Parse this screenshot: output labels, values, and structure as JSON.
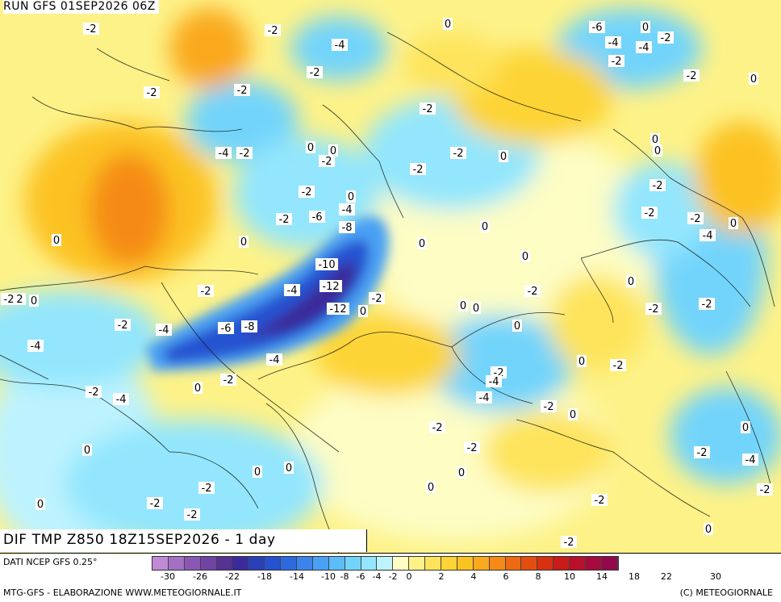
{
  "header": {
    "run_label": "RUN GFS 01SEP2026 06Z"
  },
  "title": {
    "text": "DIF TMP Z850 18Z15SEP2026 - 1 day"
  },
  "footer": {
    "source": "DATI NCEP GFS 0.25°",
    "credit_left": "MTG-GFS - ELABORAZIONE WWW.METEOGIORNALE.IT",
    "credit_right": "(C) METEOGIORNALE"
  },
  "legend": {
    "colors": [
      "#c08ad6",
      "#a370c4",
      "#8a58b4",
      "#6f44a3",
      "#553293",
      "#3b2a9a",
      "#2b3fb8",
      "#2552d0",
      "#2d6ae0",
      "#3a84ec",
      "#4aa0f4",
      "#5cbcf8",
      "#72d4fb",
      "#93e6fd",
      "#bdf3fe",
      "#fdfdc4",
      "#fdf288",
      "#fde45c",
      "#fdd436",
      "#fcc221",
      "#faa91c",
      "#f58b16",
      "#ee6a12",
      "#e44d10",
      "#d8310f",
      "#c81b1a",
      "#b8102a",
      "#a50b3c",
      "#920a4c"
    ],
    "ticks": [
      "-30",
      "-26",
      "-22",
      "-18",
      "-14",
      "-10",
      "-8",
      "-6",
      "-4",
      "-2",
      "0",
      "2",
      "4",
      "6",
      "8",
      "10",
      "14",
      "18",
      "22",
      "30"
    ]
  },
  "map_labels": [
    {
      "text": "-2"
    },
    {
      "text": "-2"
    },
    {
      "text": "-4"
    },
    {
      "text": "-2"
    },
    {
      "text": "0"
    },
    {
      "text": "-2"
    },
    {
      "text": "-6"
    },
    {
      "text": "0"
    },
    {
      "text": "-2"
    },
    {
      "text": "-4"
    },
    {
      "text": "-4"
    },
    {
      "text": "-2"
    },
    {
      "text": "-2"
    },
    {
      "text": "-2"
    },
    {
      "text": "0"
    },
    {
      "text": "-2"
    },
    {
      "text": "-2"
    },
    {
      "text": "-4"
    },
    {
      "text": "-2"
    },
    {
      "text": "0"
    },
    {
      "text": "0"
    },
    {
      "text": "0"
    },
    {
      "text": "-2"
    },
    {
      "text": "-2"
    },
    {
      "text": "-2"
    },
    {
      "text": "0"
    },
    {
      "text": "0"
    },
    {
      "text": "0"
    },
    {
      "text": "-2"
    },
    {
      "text": "-6"
    },
    {
      "text": "-4"
    },
    {
      "text": "-8"
    },
    {
      "text": "0"
    },
    {
      "text": "0"
    },
    {
      "text": "-2"
    },
    {
      "text": "0"
    },
    {
      "text": "-2"
    },
    {
      "text": "-2"
    },
    {
      "text": "-4"
    },
    {
      "text": "0"
    },
    {
      "text": "0"
    },
    {
      "text": "-10"
    },
    {
      "text": "-12"
    },
    {
      "text": "-4"
    },
    {
      "text": "-2"
    },
    {
      "text": "0"
    },
    {
      "text": "-2"
    },
    {
      "text": "-2"
    },
    {
      "text": "0"
    },
    {
      "text": "-12"
    },
    {
      "text": "-2"
    },
    {
      "text": "0"
    },
    {
      "text": "-2"
    },
    {
      "text": "0"
    },
    {
      "text": "0"
    },
    {
      "text": "-2"
    },
    {
      "text": "-6"
    },
    {
      "text": "-8"
    },
    {
      "text": "-4"
    },
    {
      "text": "0"
    },
    {
      "text": "-2"
    },
    {
      "text": "-4"
    },
    {
      "text": "-4"
    },
    {
      "text": "0"
    },
    {
      "text": "-2"
    },
    {
      "text": "-2"
    },
    {
      "text": "-4"
    },
    {
      "text": "-2"
    },
    {
      "text": "-4"
    },
    {
      "text": "-2"
    },
    {
      "text": "-4"
    },
    {
      "text": "0"
    },
    {
      "text": "0"
    },
    {
      "text": "-2"
    },
    {
      "text": "-2"
    },
    {
      "text": "-2"
    },
    {
      "text": "0"
    },
    {
      "text": "-2"
    },
    {
      "text": "-4"
    },
    {
      "text": "0"
    },
    {
      "text": "-2"
    },
    {
      "text": "0"
    },
    {
      "text": "0"
    },
    {
      "text": "0"
    },
    {
      "text": "-2"
    },
    {
      "text": "0"
    },
    {
      "text": "-2"
    },
    {
      "text": "0"
    },
    {
      "text": "-2"
    },
    {
      "text": "-2"
    },
    {
      "text": "0"
    },
    {
      "text": "-2"
    },
    {
      "text": "0"
    },
    {
      "text": "-2"
    }
  ]
}
